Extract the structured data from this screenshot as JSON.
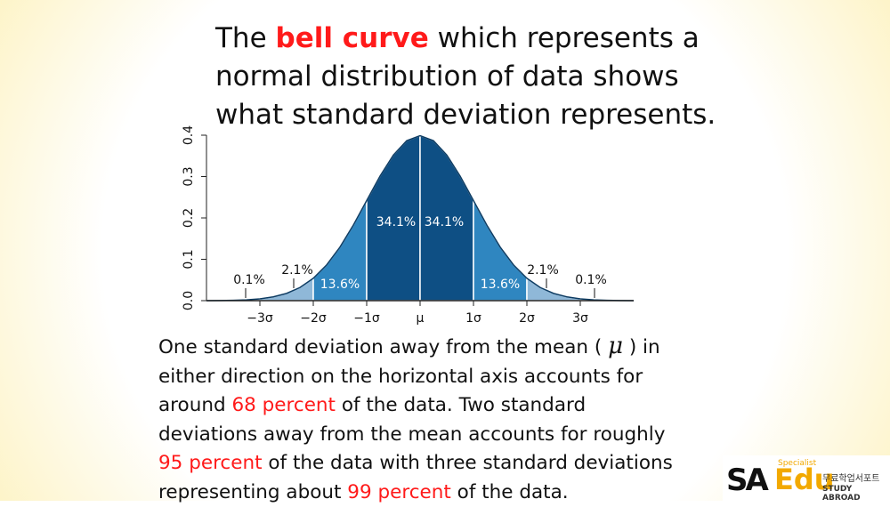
{
  "title": {
    "parts": [
      "The ",
      "bell curve",
      " which represents a",
      "normal distribution of data shows",
      "what standard deviation represents."
    ]
  },
  "chart_data": {
    "type": "area",
    "x": [
      -4,
      -3.75,
      -3.5,
      -3.25,
      -3,
      -2.75,
      -2.5,
      -2.25,
      -2,
      -1.75,
      -1.5,
      -1.25,
      -1,
      -0.75,
      -0.5,
      -0.25,
      0,
      0.25,
      0.5,
      0.75,
      1,
      1.25,
      1.5,
      1.75,
      2,
      2.25,
      2.5,
      2.75,
      3,
      3.25,
      3.5,
      3.75,
      4
    ],
    "series": [
      {
        "color": "#0d3c63",
        "values": [
          0.0001,
          0.0004,
          0.0009,
          0.002,
          0.0044,
          0.0091,
          0.0175,
          0.0317,
          0.054,
          0.0863,
          0.1295,
          0.1826,
          0.242,
          0.3011,
          0.3521,
          0.3867,
          0.3989,
          0.3867,
          0.3521,
          0.3011,
          0.242,
          0.1826,
          0.1295,
          0.0863,
          0.054,
          0.0317,
          0.0175,
          0.0091,
          0.0044,
          0.002,
          0.0009,
          0.0004,
          0.0001
        ]
      }
    ],
    "bands": {
      "edges": [
        -4,
        -3,
        -2,
        -1,
        0,
        1,
        2,
        3,
        4
      ],
      "values": [
        0.1,
        2.1,
        13.6,
        34.1,
        34.1,
        13.6,
        2.1,
        0.1
      ],
      "value_labels": [
        "0.1%",
        "2.1%",
        "13.6%",
        "34.1%",
        "34.1%",
        "13.6%",
        "2.1%",
        "0.1%"
      ],
      "colors": [
        "#c5dbec",
        "#8fb8d8",
        "#2f86c0",
        "#0e4f84",
        "#0e4f84",
        "#2f86c0",
        "#8fb8d8",
        "#c5dbec"
      ]
    },
    "xlim": [
      -4,
      4
    ],
    "xticks": [
      {
        "value": -3,
        "label": "−3σ"
      },
      {
        "value": -2,
        "label": "−2σ"
      },
      {
        "value": -1,
        "label": "−1σ"
      },
      {
        "value": 0,
        "label": "μ"
      },
      {
        "value": 1,
        "label": "1σ"
      },
      {
        "value": 2,
        "label": "2σ"
      },
      {
        "value": 3,
        "label": "3σ"
      }
    ],
    "ylim": [
      0,
      0.4
    ],
    "yticks": [
      {
        "value": 0,
        "label": "0.0"
      },
      0.1,
      0.2,
      0.3,
      0.4
    ]
  },
  "body": {
    "parts": [
      "One standard deviation away from the mean ( ",
      "μ",
      " ) in",
      "either direction on the horizontal axis accounts for",
      "around ",
      "68 percent",
      " of the data. Two standard",
      "deviations away from the mean accounts for roughly",
      "95 percent",
      " of the data with three standard deviations",
      "representing about ",
      "99 percent",
      " of the data."
    ]
  },
  "logo": {
    "mark": "SA",
    "name": "Edu",
    "tag": "Specialist",
    "korean": "무료학업서포트",
    "sub": "STUDY ABROAD"
  }
}
